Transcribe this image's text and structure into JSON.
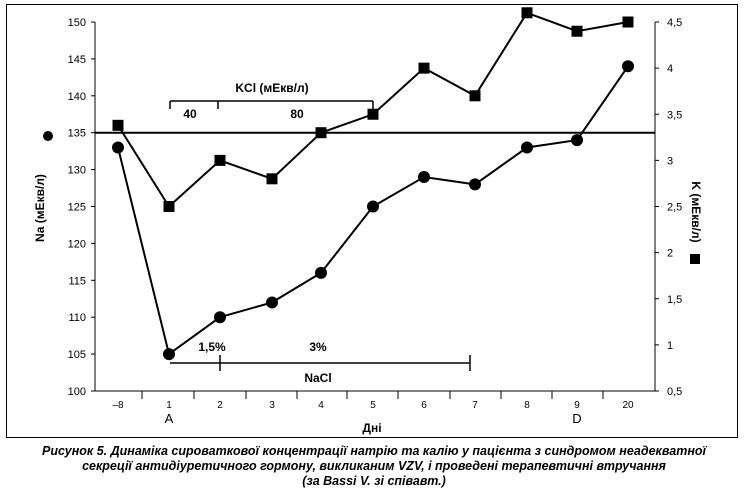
{
  "chart_data": {
    "type": "line",
    "x_categories": [
      "–8",
      "1",
      "2",
      "3",
      "4",
      "5",
      "6",
      "7",
      "8",
      "9",
      "20"
    ],
    "x_sublabels": [
      "",
      "A",
      "",
      "",
      "",
      "",
      "",
      "",
      "",
      "D",
      ""
    ],
    "xlabel": "Дні",
    "left_axis": {
      "label": "Na (мЕкв/л)",
      "min": 100,
      "max": 150,
      "ticks": [
        100,
        105,
        110,
        115,
        120,
        125,
        130,
        135,
        140,
        145,
        150
      ]
    },
    "right_axis": {
      "label": "K (мЕкв/л)",
      "min": 0.5,
      "max": 4.5,
      "ticks": [
        "0,5",
        "1",
        "1,5",
        "2",
        "2,5",
        "3",
        "3,5",
        "4",
        "4,5"
      ]
    },
    "series": [
      {
        "name": "Na",
        "axis": "left",
        "marker": "circle",
        "values": [
          133,
          105,
          110,
          112,
          116,
          125,
          129,
          128,
          133,
          134,
          144
        ]
      },
      {
        "name": "K",
        "axis": "right",
        "marker": "square",
        "values": [
          3.38,
          2.5,
          3.0,
          2.8,
          3.3,
          3.5,
          4.0,
          3.7,
          4.6,
          4.4,
          4.5
        ]
      }
    ],
    "reference_line": {
      "axis": "left",
      "value": 135
    },
    "annotations": {
      "kcl": {
        "title": "KCl (мЕкв/л)",
        "segments": [
          "40",
          "80"
        ]
      },
      "nacl": {
        "title": "NaCl",
        "segments": [
          "1,5%",
          "3%"
        ]
      }
    },
    "grid": false
  },
  "caption": {
    "line1": "Рисунок 5. Динаміка сироваткової концентрації натрію та калію у пацієнта з синдромом неадекватної",
    "line2": "секреції антидіуретичного гормону, викликаним VZV, і проведені терапевтичні втручання",
    "line3": "(за Bassi V. зі співавт.)"
  },
  "colors": {
    "ink": "#000000",
    "background": "#ffffff"
  }
}
